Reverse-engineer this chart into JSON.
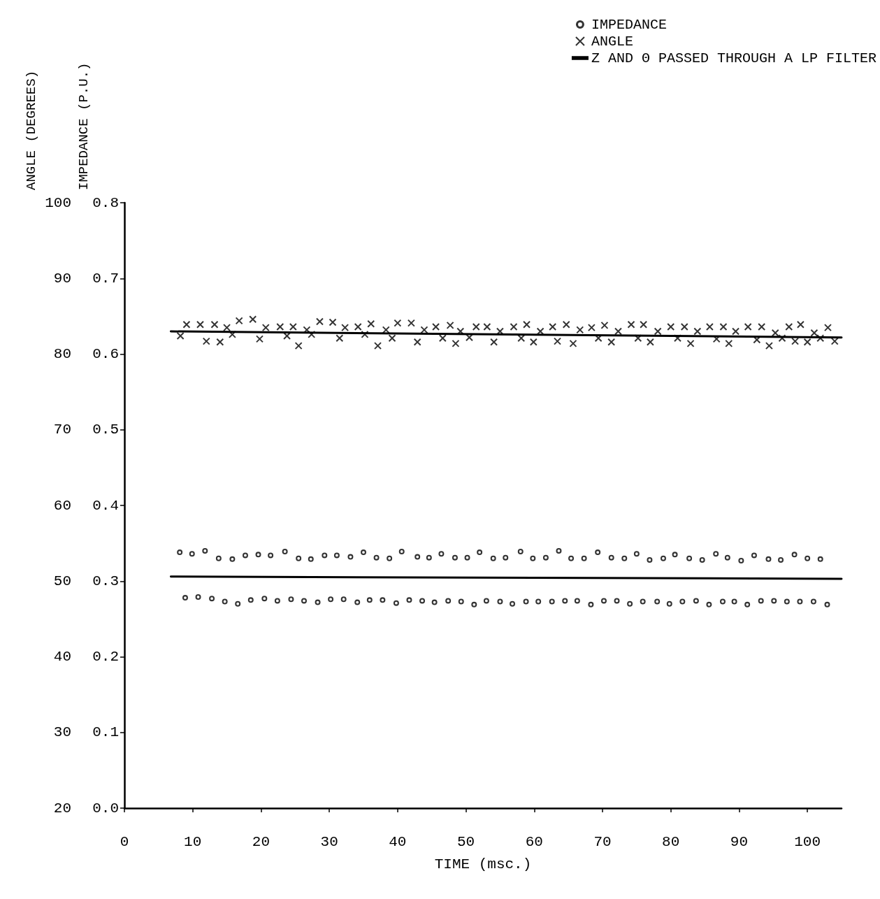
{
  "chart_data": {
    "type": "scatter",
    "xlabel": "TIME (msc.)",
    "ylabel": "ANGLE (DEGREES)",
    "y2label": "IMPEDANCE (P.U.)",
    "xlim": [
      0,
      105
    ],
    "xticks": [
      0,
      10,
      20,
      30,
      40,
      50,
      60,
      70,
      80,
      90,
      100
    ],
    "ylim": [
      20,
      100
    ],
    "yticks": [
      20,
      30,
      40,
      50,
      60,
      70,
      80,
      90,
      100
    ],
    "y2lim": [
      0,
      0.8
    ],
    "y2ticks": [
      {
        "value": 0,
        "label": "0.0"
      },
      0.1,
      0.2,
      0.3,
      0.4,
      0.5,
      0.6,
      0.7,
      0.8
    ],
    "grid": false,
    "legend": "top right",
    "series": [
      {
        "name": "IMPEDANCE",
        "marker": "circle",
        "axis": "y2",
        "color": "#000000",
        "x": [
          8.1,
          9.9,
          11.8,
          13.8,
          15.8,
          17.7,
          19.6,
          21.4,
          23.5,
          25.5,
          27.3,
          29.3,
          31.1,
          33.1,
          35.0,
          36.9,
          38.8,
          40.6,
          42.9,
          44.6,
          46.4,
          48.4,
          50.2,
          52.0,
          54.0,
          55.8,
          58.0,
          59.8,
          61.7,
          63.6,
          65.4,
          67.3,
          69.3,
          71.3,
          73.2,
          75.0,
          76.9,
          78.9,
          80.6,
          82.7,
          84.6,
          86.6,
          88.3,
          90.3,
          92.2,
          94.3,
          96.1,
          98.1,
          100.0,
          101.9,
          8.9,
          10.8,
          12.8,
          14.7,
          16.6,
          18.5,
          20.5,
          22.4,
          24.4,
          26.3,
          28.3,
          30.2,
          32.1,
          34.1,
          35.9,
          37.8,
          39.8,
          41.7,
          43.6,
          45.4,
          47.4,
          49.3,
          51.2,
          53.0,
          55.0,
          56.8,
          58.8,
          60.6,
          62.6,
          64.5,
          66.3,
          68.3,
          70.2,
          72.1,
          74.0,
          75.9,
          78.0,
          79.8,
          81.7,
          83.7,
          85.6,
          87.6,
          89.3,
          91.2,
          93.2,
          95.1,
          97.0,
          98.9,
          100.9,
          102.9
        ],
        "values": [
          0.338,
          0.336,
          0.34,
          0.33,
          0.329,
          0.334,
          0.335,
          0.334,
          0.339,
          0.33,
          0.329,
          0.334,
          0.334,
          0.332,
          0.338,
          0.331,
          0.33,
          0.339,
          0.332,
          0.331,
          0.336,
          0.331,
          0.331,
          0.338,
          0.33,
          0.331,
          0.339,
          0.33,
          0.331,
          0.34,
          0.33,
          0.33,
          0.338,
          0.331,
          0.33,
          0.336,
          0.328,
          0.33,
          0.335,
          0.33,
          0.328,
          0.336,
          0.331,
          0.327,
          0.334,
          0.329,
          0.328,
          0.335,
          0.33,
          0.329,
          0.278,
          0.279,
          0.277,
          0.273,
          0.27,
          0.275,
          0.277,
          0.274,
          0.276,
          0.274,
          0.272,
          0.276,
          0.276,
          0.272,
          0.275,
          0.275,
          0.271,
          0.275,
          0.274,
          0.272,
          0.274,
          0.273,
          0.269,
          0.274,
          0.273,
          0.27,
          0.273,
          0.273,
          0.273,
          0.274,
          0.274,
          0.269,
          0.274,
          0.274,
          0.27,
          0.273,
          0.273,
          0.27,
          0.273,
          0.274,
          0.269,
          0.273,
          0.273,
          0.269,
          0.274,
          0.274,
          0.273,
          0.273,
          0.273,
          0.269
        ]
      },
      {
        "name": "ANGLE",
        "marker": "cross",
        "color": "#000000",
        "x": [
          8.2,
          9.1,
          11.1,
          12.0,
          13.2,
          14.0,
          15.0,
          15.8,
          16.8,
          18.8,
          19.8,
          20.7,
          22.8,
          23.8,
          24.7,
          25.5,
          26.7,
          27.4,
          28.6,
          30.5,
          31.5,
          32.3,
          34.2,
          35.2,
          36.1,
          37.1,
          38.3,
          39.2,
          40.0,
          42.0,
          42.9,
          43.9,
          45.6,
          46.6,
          47.7,
          48.5,
          49.2,
          50.5,
          51.5,
          53.1,
          54.1,
          55.0,
          57.0,
          58.1,
          58.9,
          59.9,
          60.9,
          62.7,
          63.4,
          64.7,
          65.7,
          66.7,
          68.4,
          69.4,
          70.3,
          71.3,
          72.3,
          74.2,
          75.2,
          76.0,
          77.0,
          78.1,
          80.0,
          81.0,
          82.0,
          82.9,
          83.9,
          85.7,
          86.7,
          87.7,
          88.5,
          89.5,
          91.3,
          92.6,
          93.3,
          94.4,
          95.3,
          96.3,
          97.3,
          98.2,
          99.0,
          100.0,
          101.0,
          101.9,
          103.0,
          104.0
        ],
        "values": [
          82.4,
          83.9,
          83.9,
          81.7,
          83.9,
          81.6,
          83.5,
          82.6,
          84.4,
          84.6,
          82.0,
          83.5,
          83.6,
          82.4,
          83.6,
          81.1,
          83.2,
          82.6,
          84.3,
          84.2,
          82.1,
          83.5,
          83.6,
          82.6,
          84.0,
          81.1,
          83.2,
          82.1,
          84.1,
          84.1,
          81.6,
          83.2,
          83.6,
          82.1,
          83.8,
          81.4,
          83.0,
          82.2,
          83.6,
          83.6,
          81.6,
          83.0,
          83.6,
          82.1,
          83.9,
          81.6,
          83.0,
          83.6,
          81.7,
          83.9,
          81.4,
          83.2,
          83.5,
          82.1,
          83.8,
          81.6,
          83.0,
          83.9,
          82.1,
          83.9,
          81.6,
          83.0,
          83.6,
          82.1,
          83.6,
          81.4,
          83.0,
          83.6,
          82.0,
          83.6,
          81.4,
          83.0,
          83.6,
          81.9,
          83.6,
          81.1,
          82.8,
          82.1,
          83.6,
          81.7,
          83.9,
          81.6,
          82.8,
          82.1,
          83.5,
          81.7
        ]
      },
      {
        "name": "Z AND Θ PASSED THROUGH A LP FILTER",
        "type": "line",
        "marker": "none",
        "line_style": "solid",
        "color": "#000000",
        "x": [
          6.8,
          105
        ],
        "values": [
          83.0,
          82.2
        ]
      },
      {
        "type": "line",
        "marker": "none",
        "line_style": "solid",
        "axis": "y2",
        "color": "#000000",
        "x": [
          6.8,
          105
        ],
        "values": [
          0.306,
          0.303
        ]
      }
    ]
  }
}
